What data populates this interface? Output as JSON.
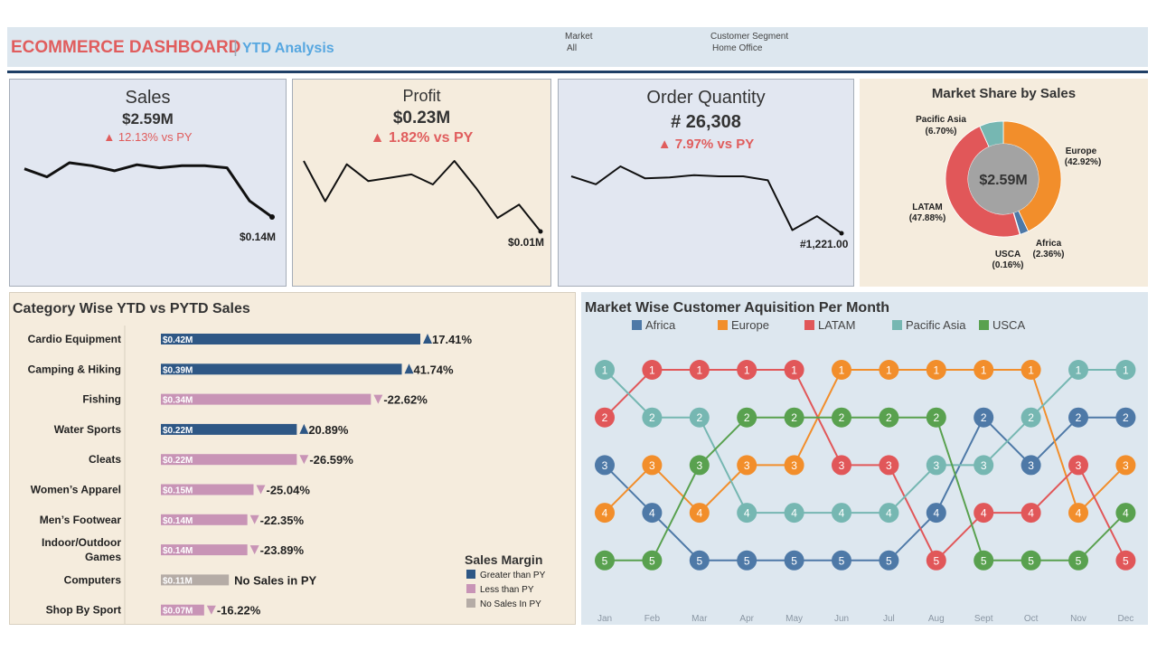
{
  "header": {
    "title": "ECOMMERCE DASHBOARD",
    "separator": "|",
    "subtitle": "YTD Analysis",
    "filters": [
      {
        "label": "Market",
        "value": "All"
      },
      {
        "label": "Customer Segment",
        "value": "Home Office"
      }
    ]
  },
  "kpis": [
    {
      "title": "Sales",
      "value": "$2.59M",
      "change": "▲ 12.13%  vs  PY",
      "end_label": "$0.14M",
      "trend": [
        0.62,
        0.54,
        0.68,
        0.65,
        0.6,
        0.66,
        0.63,
        0.65,
        0.65,
        0.63,
        0.3,
        0.14
      ]
    },
    {
      "title": "Profit",
      "value": "$0.23M",
      "change": "▲ 1.82%  vs  PY",
      "end_label": "$0.01M",
      "trend": [
        0.115,
        0.055,
        0.11,
        0.085,
        0.09,
        0.095,
        0.08,
        0.115,
        0.075,
        0.03,
        0.05,
        0.01
      ]
    },
    {
      "title": "Order Quantity",
      "value": "# 26,308",
      "change": "▲ 7.97%  vs  PY",
      "end_label": "#1,221.00",
      "trend": [
        2650,
        2450,
        2900,
        2600,
        2620,
        2680,
        2650,
        2650,
        2550,
        1300,
        1650,
        1221
      ]
    }
  ],
  "market_share": {
    "title": "Market Share by Sales",
    "center_label": "$2.59M",
    "colors": {
      "Europe": "#f28e2b",
      "Africa": "#4e79a7",
      "USCA": "#59a14f",
      "LATAM": "#e15759",
      "Pacific Asia": "#76b7b2"
    },
    "slices": [
      {
        "name": "Europe",
        "pct": 42.92,
        "label": "Europe",
        "pct_label": "(42.92%)"
      },
      {
        "name": "Africa",
        "pct": 2.36,
        "label": "Africa",
        "pct_label": "(2.36%)"
      },
      {
        "name": "USCA",
        "pct": 0.16,
        "label": "USCA",
        "pct_label": "(0.16%)"
      },
      {
        "name": "LATAM",
        "pct": 47.88,
        "label": "LATAM",
        "pct_label": "(47.88%)"
      },
      {
        "name": "Pacific Asia",
        "pct": 6.7,
        "label": "Pacific Asia",
        "pct_label": "(6.70%)"
      }
    ]
  },
  "category": {
    "title": "Category Wise YTD vs PYTD Sales",
    "legend_title": "Sales Margin",
    "legend": [
      {
        "label": "Greater than PY",
        "color": "#2e5785"
      },
      {
        "label": "Less than PY",
        "color": "#c894b6"
      },
      {
        "label": "No Sales In PY",
        "color": "#b5aca6"
      }
    ],
    "rows": [
      {
        "name": "Cardio Equipment",
        "value": 0.42,
        "label": "$0.42M",
        "status": "up",
        "change": "17.41%"
      },
      {
        "name": "Camping & Hiking",
        "value": 0.39,
        "label": "$0.39M",
        "status": "up",
        "change": "41.74%"
      },
      {
        "name": "Fishing",
        "value": 0.34,
        "label": "$0.34M",
        "status": "down",
        "change": "-22.62%"
      },
      {
        "name": "Water Sports",
        "value": 0.22,
        "label": "$0.22M",
        "status": "up",
        "change": "20.89%"
      },
      {
        "name": "Cleats",
        "value": 0.22,
        "label": "$0.22M",
        "status": "down",
        "change": "-26.59%"
      },
      {
        "name": "Women's Apparel",
        "value": 0.15,
        "label": "$0.15M",
        "status": "down",
        "change": "-25.04%"
      },
      {
        "name": "Men's Footwear",
        "value": 0.14,
        "label": "$0.14M",
        "status": "down",
        "change": "-22.35%"
      },
      {
        "name": "Indoor/Outdoor Games",
        "value": 0.14,
        "label": "$0.14M",
        "status": "down",
        "change": "-23.89%"
      },
      {
        "name": "Computers",
        "value": 0.11,
        "label": "$0.11M",
        "status": "none",
        "change": "No Sales in PY"
      },
      {
        "name": "Shop By Sport",
        "value": 0.07,
        "label": "$0.07M",
        "status": "down",
        "change": "-16.22%"
      }
    ]
  },
  "chart_data": {
    "type": "line",
    "title": "Market Wise Customer Aquisition Per Month",
    "y_meaning": "rank (1 = top)",
    "x": [
      "Jan",
      "Feb",
      "Mar",
      "Apr",
      "May",
      "Jun",
      "Jul",
      "Aug",
      "Sept",
      "Oct",
      "Nov",
      "Dec"
    ],
    "series": [
      {
        "name": "Africa",
        "color": "#4e79a7",
        "values": [
          3,
          4,
          5,
          5,
          5,
          5,
          5,
          4,
          2,
          3,
          2,
          2
        ]
      },
      {
        "name": "Europe",
        "color": "#f28e2b",
        "values": [
          4,
          3,
          4,
          3,
          3,
          1,
          1,
          1,
          1,
          1,
          4,
          3
        ]
      },
      {
        "name": "LATAM",
        "color": "#e15759",
        "values": [
          2,
          1,
          1,
          1,
          1,
          3,
          3,
          5,
          4,
          4,
          3,
          5
        ]
      },
      {
        "name": "Pacific Asia",
        "color": "#76b7b2",
        "values": [
          1,
          2,
          2,
          4,
          4,
          4,
          4,
          3,
          3,
          2,
          1,
          1
        ]
      },
      {
        "name": "USCA",
        "color": "#59a14f",
        "values": [
          5,
          5,
          3,
          2,
          2,
          2,
          2,
          2,
          5,
          5,
          5,
          4
        ]
      }
    ]
  }
}
